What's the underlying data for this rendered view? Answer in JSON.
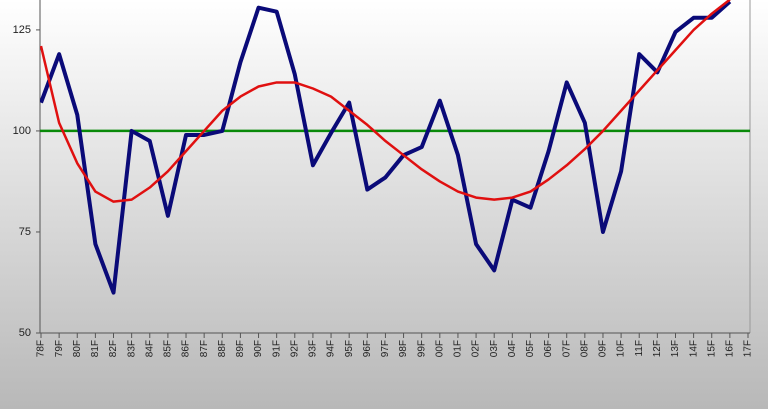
{
  "chart_data": {
    "type": "line",
    "categories": [
      "78F",
      "79F",
      "80F",
      "81F",
      "82F",
      "83F",
      "84F",
      "85F",
      "86F",
      "87F",
      "88F",
      "89F",
      "90F",
      "91F",
      "92F",
      "93F",
      "94F",
      "95F",
      "96F",
      "97F",
      "98F",
      "99F",
      "00F",
      "01F",
      "02F",
      "03F",
      "04F",
      "05F",
      "06F",
      "07F",
      "08F",
      "09F",
      "10F",
      "11F",
      "12F",
      "13F",
      "14F",
      "15F",
      "16F",
      "17F"
    ],
    "series": [
      {
        "color": "#0a0a78",
        "values": [
          107,
          119,
          104,
          72,
          60,
          100,
          97.5,
          79,
          99,
          99,
          100,
          117,
          130.5,
          129.5,
          114,
          91.5,
          99.5,
          107,
          85.5,
          88.5,
          94,
          96,
          107.5,
          94,
          72,
          65.5,
          83,
          81,
          95,
          112,
          102,
          75,
          90,
          119,
          114.5,
          124.5,
          128,
          128,
          132,
          null
        ]
      },
      {
        "color": "#e01010",
        "values": [
          121,
          102,
          92,
          85,
          82.5,
          83,
          86,
          90,
          95,
          100,
          105,
          108.5,
          111,
          112,
          112,
          110.5,
          108.5,
          105,
          101.5,
          97.5,
          94,
          90.5,
          87.5,
          85,
          83.5,
          83,
          83.5,
          85,
          88,
          91.5,
          95.5,
          100,
          105,
          110,
          115,
          120,
          125,
          129,
          132.5,
          null
        ]
      }
    ],
    "reference_line": {
      "value": 100,
      "color": "#0a8a0a"
    },
    "ylim": [
      50,
      132.4
    ],
    "yticks": [
      50,
      75,
      100,
      125
    ]
  }
}
